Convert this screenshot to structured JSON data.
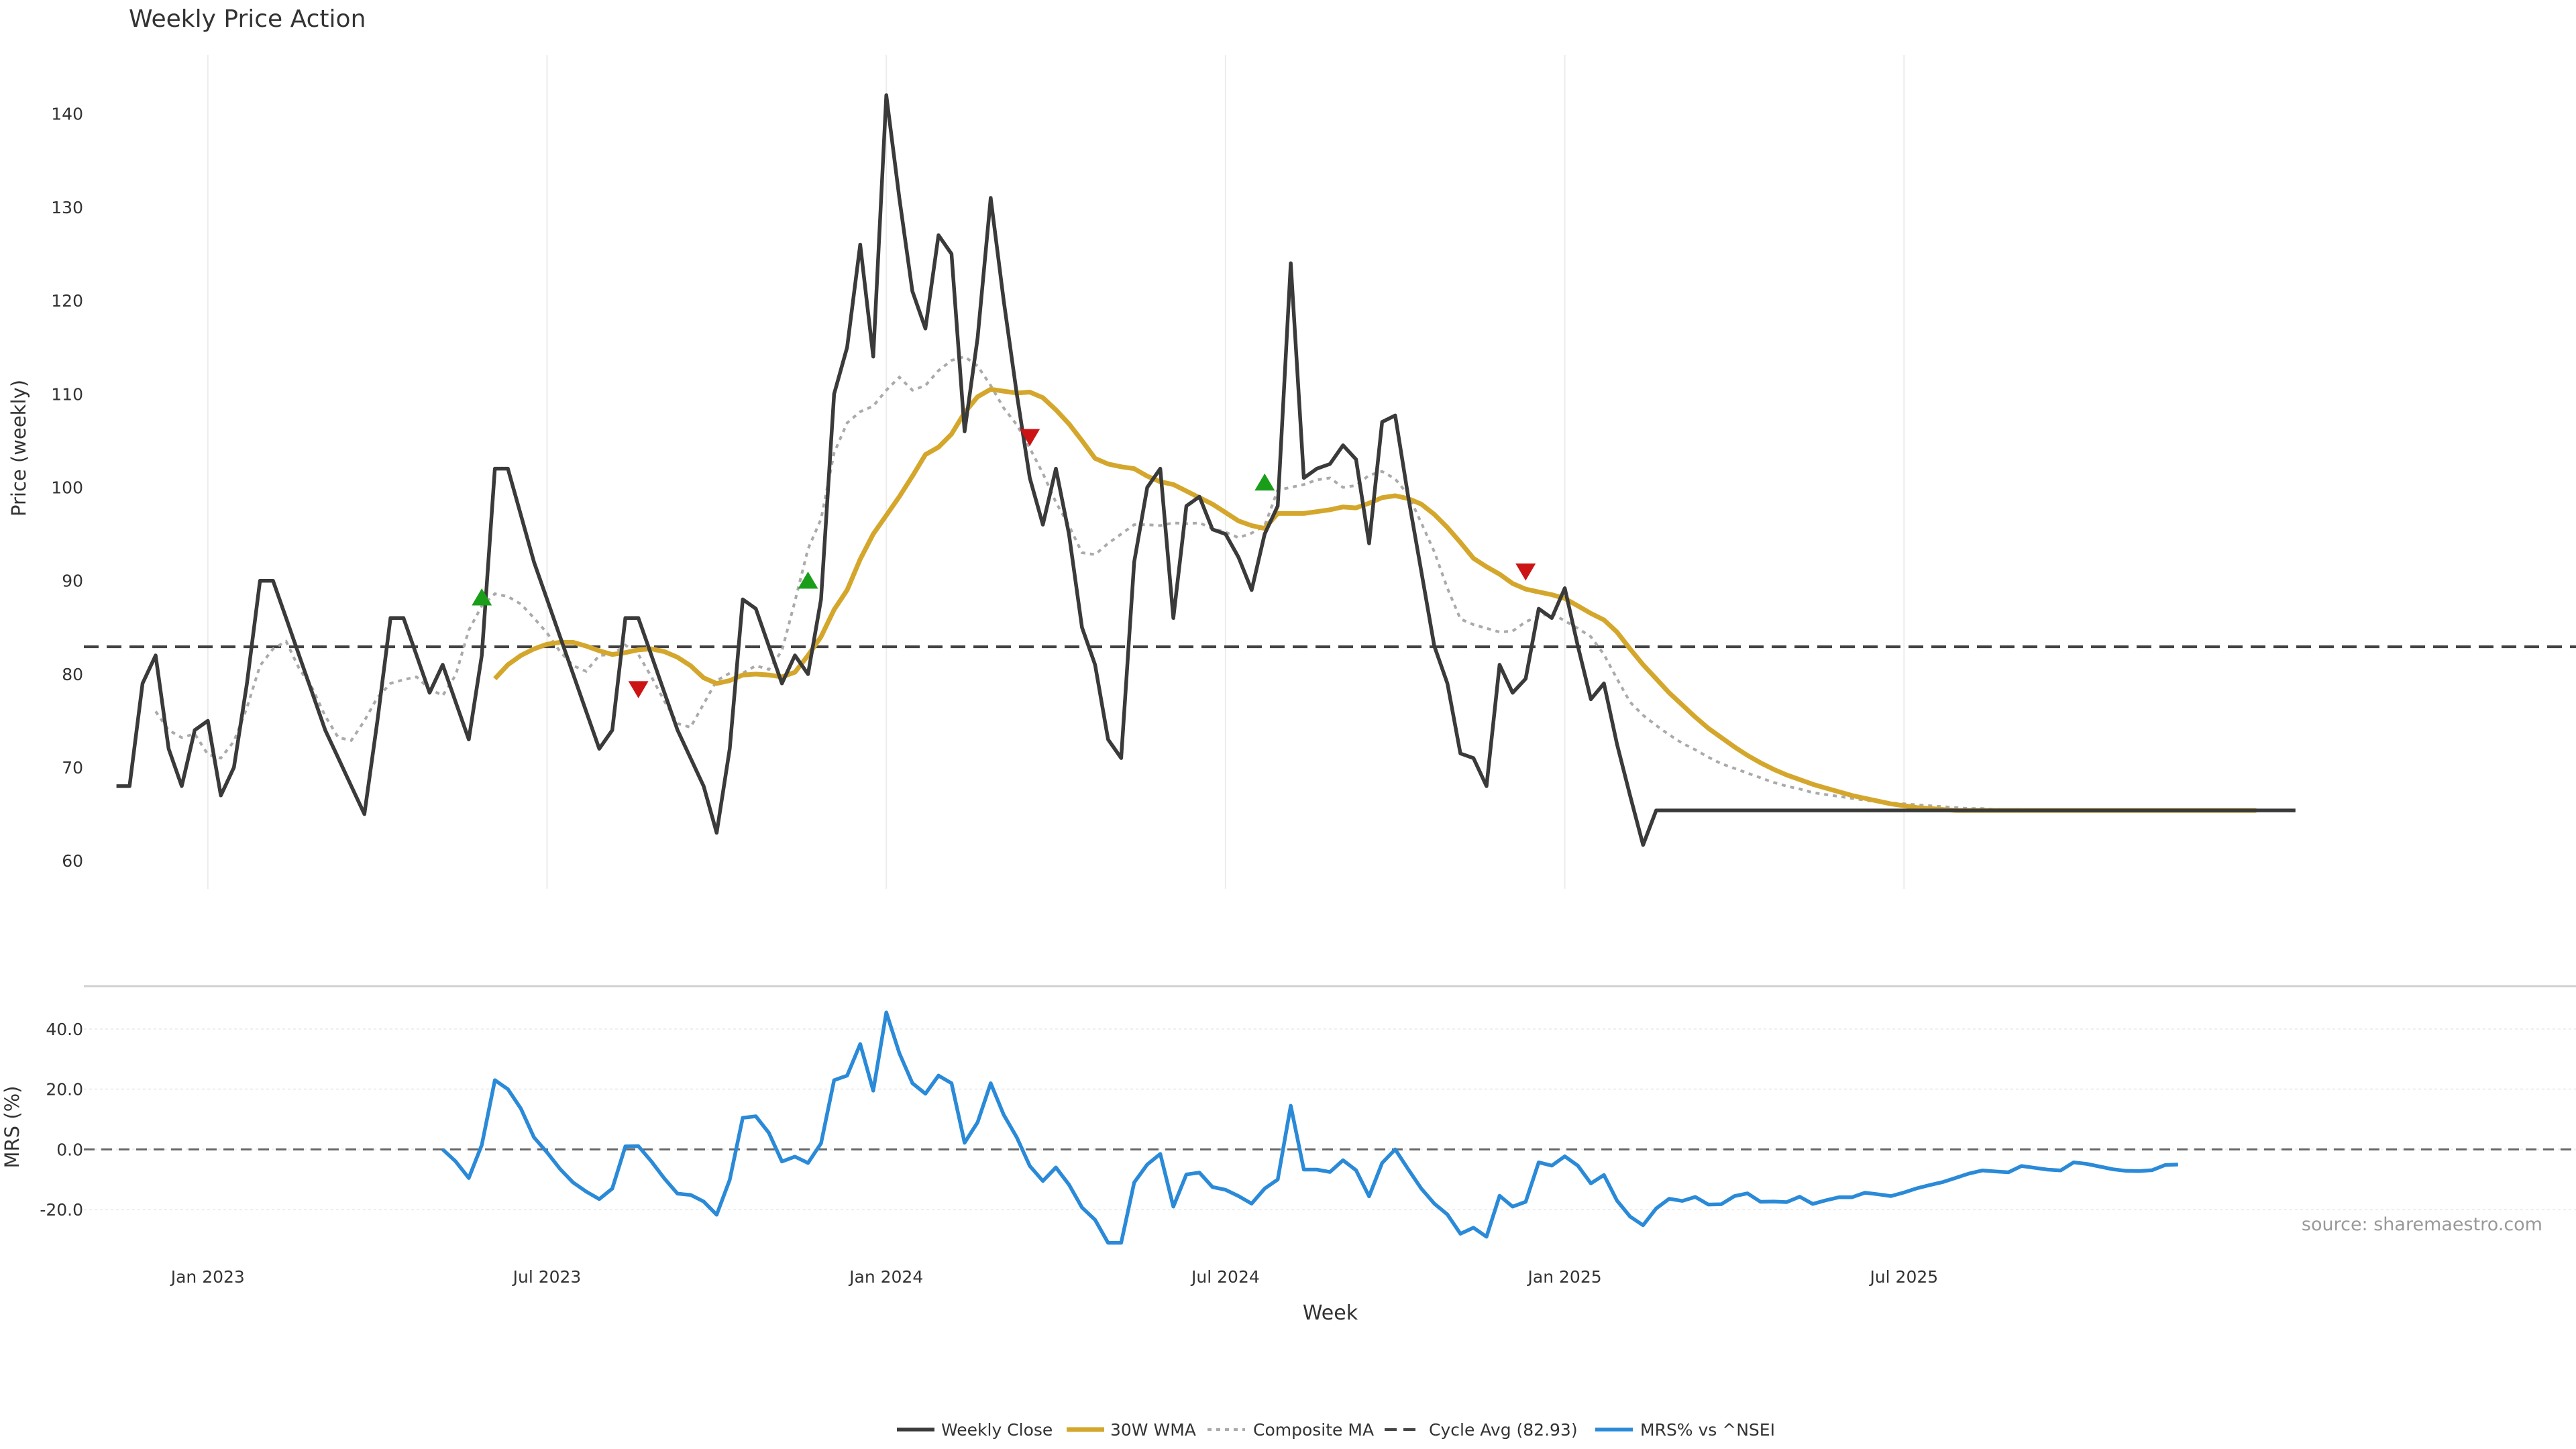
{
  "chart_data": {
    "type": "line",
    "title": "Weekly Price Action",
    "xlabel": "Week",
    "ylabel": "Price (weekly)",
    "ylabel2": "MRS (%)",
    "source": "source: sharemaestro.com",
    "x_ticks": [
      "Jan 2023",
      "Jul 2023",
      "Jan 2024",
      "Jul 2024",
      "Jan 2025",
      "Jul 2025"
    ],
    "x_range": [
      -9.5,
      181.5
    ],
    "x_tick_positions": [
      0,
      26,
      52,
      78,
      104,
      130
    ],
    "price_panel": {
      "ylim": [
        57,
        146.3
      ],
      "yticks": [
        60,
        70,
        80,
        90,
        100,
        110,
        120,
        130,
        140
      ],
      "cycle_avg": 82.93
    },
    "mrs_panel": {
      "ylim": [
        -36,
        52
      ],
      "yticks": [
        "40.0",
        "20.0",
        "0.0",
        "-20.0"
      ],
      "ytick_values": [
        40,
        20,
        0,
        -20
      ],
      "zero_line": 0
    },
    "series": [
      {
        "name": "Weekly Close",
        "color": "#3a3a3a",
        "start_x": -7,
        "values": [
          68,
          68,
          79,
          82,
          72,
          68,
          74,
          75,
          67,
          70,
          79,
          90,
          90,
          86,
          82,
          78,
          74,
          71,
          68,
          65,
          75,
          86,
          86,
          82,
          78,
          81,
          77,
          73,
          82,
          102,
          102,
          97,
          92,
          88,
          84,
          80,
          76,
          72,
          74,
          86,
          86,
          82,
          78,
          74,
          71,
          68,
          63,
          72,
          88,
          87,
          83,
          79,
          82,
          80,
          88,
          110,
          115,
          126,
          114,
          142,
          131,
          121,
          117,
          127,
          125,
          106,
          116,
          131,
          120,
          110,
          101,
          96,
          102,
          95,
          85,
          81,
          73,
          71,
          92,
          100,
          102,
          86,
          98,
          99,
          95.5,
          95,
          92.5,
          89,
          95,
          98,
          124,
          101,
          102,
          102.5,
          104.5,
          103,
          94,
          107,
          107.7,
          99,
          91,
          83,
          79,
          71.5,
          71,
          68,
          81,
          78,
          79.5,
          87,
          86,
          89.2,
          83,
          77.3,
          79,
          72.5,
          67,
          61.7,
          65.4,
          65.4,
          65.4,
          65.4,
          65.4,
          65.4,
          65.4,
          65.4,
          65.4,
          65.4,
          65.4,
          65.4,
          65.4,
          65.4,
          65.4,
          65.4,
          65.4,
          65.4,
          65.4,
          65.4,
          65.4,
          65.4,
          65.4,
          65.4,
          65.4,
          65.4,
          65.4,
          65.4,
          65.4,
          65.4,
          65.4,
          65.4,
          65.4,
          65.4,
          65.4,
          65.4,
          65.4,
          65.4,
          65.4,
          65.4,
          65.4,
          65.4,
          65.4,
          65.4,
          65.4,
          65.4,
          65.4,
          65.4,
          65.4,
          65.4
        ]
      },
      {
        "name": "30W WMA",
        "color": "#d4a72c",
        "start_x": 22,
        "values": [
          79.5,
          81,
          82,
          82.7,
          83.2,
          83.4,
          83.4,
          83,
          82.5,
          82.1,
          82.3,
          82.6,
          82.7,
          82.4,
          81.8,
          80.9,
          79.6,
          79,
          79.3,
          79.9,
          80,
          79.9,
          79.7,
          80.2,
          82,
          84,
          86.9,
          89,
          92.3,
          95,
          97,
          99,
          101.2,
          103.5,
          104.3,
          105.7,
          108,
          109.7,
          110.5,
          110.3,
          110.1,
          110.2,
          109.6,
          108.3,
          106.8,
          105,
          103.1,
          102.5,
          102.2,
          102,
          101.2,
          100.6,
          100.3,
          99.6,
          98.9,
          98.2,
          97.3,
          96.4,
          95.9,
          95.6,
          97.2,
          97.2,
          97.2,
          97.4,
          97.6,
          97.9,
          97.8,
          98.3,
          98.9,
          99.1,
          98.8,
          98.2,
          97.1,
          95.7,
          94.1,
          92.4,
          91.5,
          90.7,
          89.7,
          89.1,
          88.8,
          88.5,
          88.1,
          87.3,
          86.5,
          85.8,
          84.5,
          82.7,
          81,
          79.5,
          78,
          76.7,
          75.4,
          74.2,
          73.2,
          72.2,
          71.3,
          70.5,
          69.8,
          69.2,
          68.7,
          68.2,
          67.8,
          67.4,
          67,
          66.7,
          66.4,
          66.1,
          65.9,
          65.7,
          65.6,
          65.5,
          65.4,
          65.4,
          65.4,
          65.4,
          65.4,
          65.4,
          65.4,
          65.4,
          65.4,
          65.4,
          65.4,
          65.4,
          65.4,
          65.4,
          65.4,
          65.4,
          65.4,
          65.4,
          65.4,
          65.4,
          65.4,
          65.4,
          65.4,
          65.4
        ]
      },
      {
        "name": "Composite MA",
        "color": "#aaaaaa",
        "start_x": -4,
        "values": [
          76,
          74,
          73.2,
          73.6,
          71.4,
          71,
          72.8,
          76.4,
          80.9,
          82.7,
          83.5,
          80.6,
          78.5,
          75.5,
          73.2,
          72.9,
          75,
          77.5,
          79,
          79.4,
          79.7,
          78.4,
          77.7,
          79.9,
          84.7,
          87.3,
          88.6,
          88.3,
          87.5,
          86,
          84.4,
          82.4,
          80.9,
          80.3,
          82,
          82.1,
          83.1,
          82.1,
          79.7,
          77.1,
          74.7,
          74.3,
          76.8,
          79.3,
          80.1,
          80.1,
          80.9,
          80.5,
          82.5,
          87.8,
          93.4,
          96.6,
          103.7,
          106.9,
          108.1,
          108.7,
          110.4,
          111.8,
          110.4,
          110.9,
          112.5,
          113.6,
          114,
          113,
          110.9,
          108.5,
          106.7,
          104.2,
          101.5,
          98.4,
          95.9,
          93,
          92.8,
          94,
          95,
          96,
          96,
          95.9,
          96.2,
          96.1,
          96.2,
          95.6,
          95.2,
          94.6,
          95.1,
          95.9,
          99.7,
          100,
          100.3,
          100.8,
          101,
          100,
          100.2,
          101.3,
          101.7,
          100.9,
          99.2,
          96.2,
          93.1,
          89.2,
          85.9,
          85.3,
          84.9,
          84.5,
          84.6,
          85.6,
          86.2,
          86.5,
          85.7,
          84.9,
          84,
          82.1,
          79.5,
          77,
          75.6,
          74.5,
          73.5,
          72.6,
          71.9,
          71.1,
          70.4,
          69.9,
          69.4,
          68.9,
          68.4,
          68,
          67.7,
          67.3,
          67.1,
          66.9,
          66.7,
          66.5,
          66.3,
          66.2,
          66.1,
          66,
          65.9,
          65.8,
          65.7,
          65.6,
          65.6,
          65.5,
          65.5,
          65.5,
          65.4,
          65.4,
          65.4,
          65.4,
          65.4,
          65.4,
          65.4
        ]
      },
      {
        "name": "Cycle Avg (82.93)",
        "color": "#444444",
        "value": 82.93
      },
      {
        "name": "MRS% vs ^NSEI",
        "color": "#2a8ad8",
        "start_x": 18,
        "values": [
          0,
          -4,
          -9.5,
          1.5,
          23,
          20,
          13.5,
          4,
          -1,
          -6.5,
          -11,
          -14,
          -16.5,
          -13,
          1,
          1.1,
          -4,
          -9.7,
          -14.7,
          -15.1,
          -17.3,
          -21.7,
          -10.1,
          10.5,
          11,
          5.5,
          -4,
          -2.4,
          -4.5,
          2,
          23,
          24.5,
          35,
          19.5,
          45.5,
          32,
          22,
          18.5,
          24.5,
          22,
          2.2,
          9,
          22,
          11.5,
          4,
          -5.5,
          -10.5,
          -6,
          -11.7,
          -19.3,
          -23.4,
          -31,
          -31,
          -11,
          -5,
          -1.5,
          -19,
          -8.3,
          -7.7,
          -12.5,
          -13.4,
          -15.5,
          -18,
          -13,
          -10,
          14.5,
          -6.7,
          -6.7,
          -7.5,
          -3.6,
          -6.9,
          -15.6,
          -4.5,
          0,
          -6.6,
          -13,
          -18,
          -21.6,
          -28,
          -26,
          -29,
          -15.4,
          -19,
          -17.4,
          -4.3,
          -5.4,
          -2.3,
          -5.4,
          -11.3,
          -8.5,
          -17,
          -22.3,
          -25.2,
          -19.6,
          -16.4,
          -17.1,
          -15.8,
          -18.3,
          -18.2,
          -15.5,
          -14.6,
          -17.4,
          -17.3,
          -17.5,
          -15.7,
          -18.1,
          -16.9,
          -15.9,
          -15.9,
          -14.4,
          -14.9,
          -15.5,
          -14.3,
          -12.9,
          -11.8,
          -10.8,
          -9.4,
          -8,
          -7,
          -7.3,
          -7.6,
          -5.5,
          -6.1,
          -6.7,
          -7,
          -4.3,
          -4.8,
          -5.7,
          -6.6,
          -7.1,
          -7.2,
          -6.9,
          -5.2,
          -5
        ]
      }
    ],
    "buy_signals": [
      {
        "x": 21,
        "y": 88
      },
      {
        "x": 46,
        "y": 89.8
      },
      {
        "x": 81,
        "y": 100.3
      }
    ],
    "sell_signals": [
      {
        "x": 33,
        "y": 78.6
      },
      {
        "x": 63,
        "y": 105.6
      },
      {
        "x": 101,
        "y": 91.2
      }
    ],
    "legend": {
      "placement": "bottom-center",
      "entries": [
        "Weekly Close",
        "30W WMA",
        "Composite MA",
        "Cycle Avg (82.93)",
        "MRS% vs ^NSEI"
      ]
    },
    "grid": true,
    "signal_colors": {
      "buy": "#1a9e1a",
      "sell": "#cc1414"
    }
  }
}
